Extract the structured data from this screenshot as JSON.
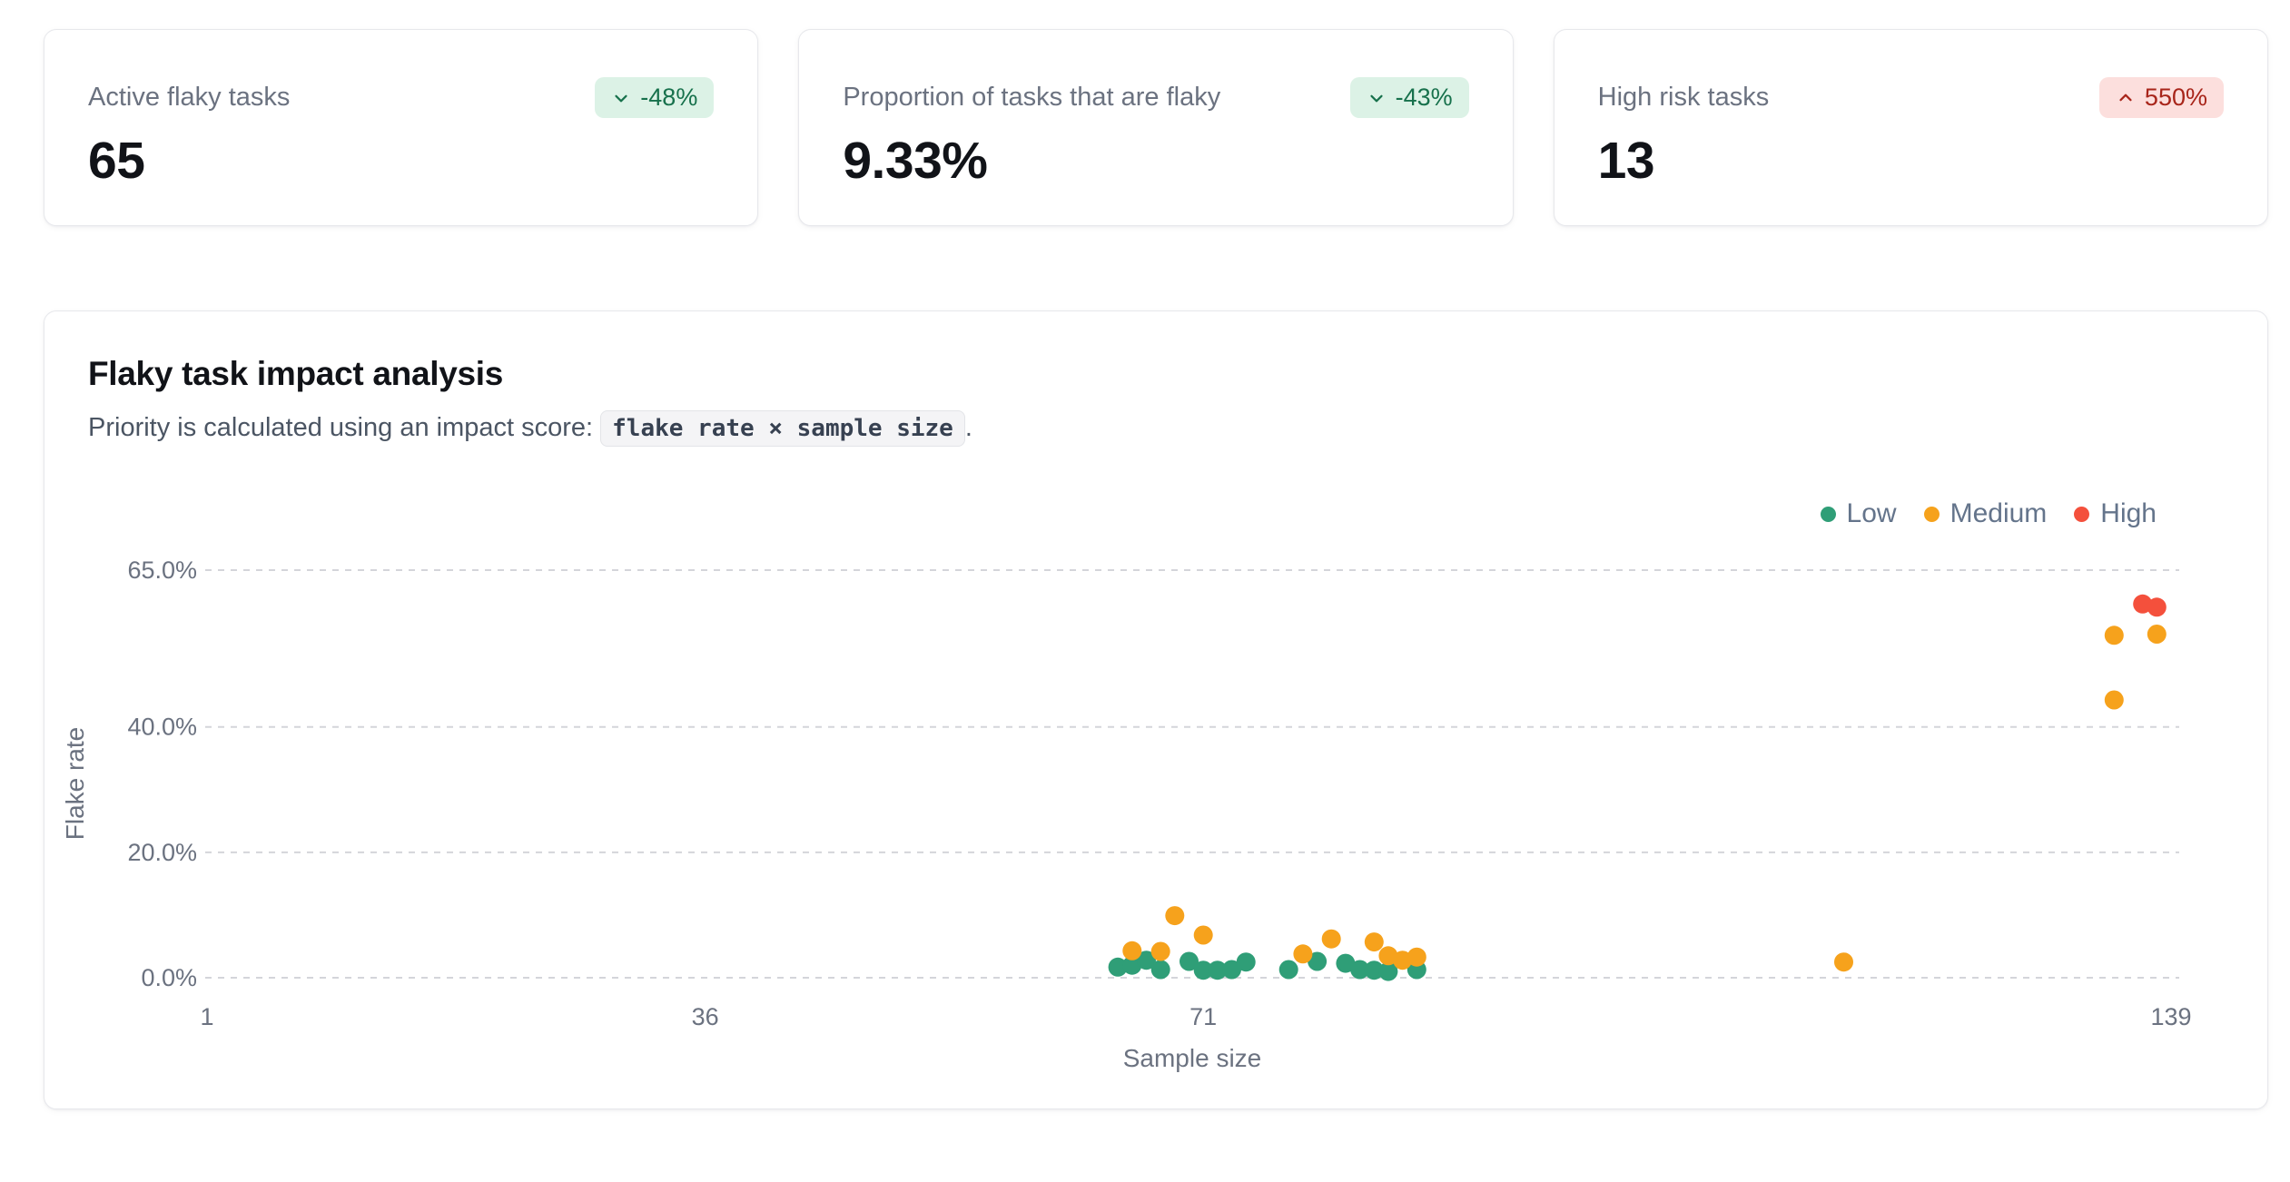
{
  "stats": {
    "cards": [
      {
        "label": "Active flaky tasks",
        "value": "65",
        "delta": "-48%",
        "direction": "down",
        "tone": "positive"
      },
      {
        "label": "Proportion of tasks that are flaky",
        "value": "9.33%",
        "delta": "-43%",
        "direction": "down",
        "tone": "positive"
      },
      {
        "label": "High risk tasks",
        "value": "13",
        "delta": "550%",
        "direction": "up",
        "tone": "negative"
      }
    ]
  },
  "chart_card": {
    "title": "Flaky task impact analysis",
    "subtitle_prefix": "Priority is calculated using an impact score: ",
    "impact_formula": "flake rate × sample size",
    "subtitle_suffix": "."
  },
  "chart_data": {
    "type": "scatter",
    "title": "Flaky task impact analysis",
    "xlabel": "Sample size",
    "ylabel": "Flake rate",
    "xlim": [
      1,
      139
    ],
    "ylim": [
      0,
      65
    ],
    "x_ticks": [
      1,
      36,
      71,
      139
    ],
    "y_ticks": [
      {
        "value": 0,
        "label": "0.0%"
      },
      {
        "value": 20,
        "label": "20.0%"
      },
      {
        "value": 40,
        "label": "40.0%"
      },
      {
        "value": 65,
        "label": "65.0%"
      }
    ],
    "grid": "horizontal-dashed",
    "legend_position": "top-right",
    "point_radius": 10.5,
    "series": [
      {
        "name": "Low",
        "color": "#2f9e77",
        "points": [
          [
            65,
            1.7
          ],
          [
            66,
            2.0
          ],
          [
            67,
            2.8
          ],
          [
            68,
            1.3
          ],
          [
            70,
            2.6
          ],
          [
            71,
            1.2
          ],
          [
            72,
            1.2
          ],
          [
            73,
            1.3
          ],
          [
            74,
            2.5
          ],
          [
            77,
            1.3
          ],
          [
            79,
            2.6
          ],
          [
            81,
            2.3
          ],
          [
            82,
            1.3
          ],
          [
            83,
            1.2
          ],
          [
            84,
            1.0
          ],
          [
            86,
            1.3
          ]
        ]
      },
      {
        "name": "Medium",
        "color": "#f6a21c",
        "points": [
          [
            66,
            4.3
          ],
          [
            68,
            4.2
          ],
          [
            69,
            9.9
          ],
          [
            71,
            6.8
          ],
          [
            78,
            3.8
          ],
          [
            80,
            6.2
          ],
          [
            83,
            5.7
          ],
          [
            84,
            3.5
          ],
          [
            85,
            2.8
          ],
          [
            86,
            3.3
          ],
          [
            116,
            2.5
          ],
          [
            135,
            44.3
          ],
          [
            135,
            54.6
          ],
          [
            138,
            54.8
          ]
        ]
      },
      {
        "name": "High",
        "color": "#f4503c",
        "points": [
          [
            137,
            59.6
          ],
          [
            138,
            59.1
          ]
        ]
      }
    ]
  }
}
